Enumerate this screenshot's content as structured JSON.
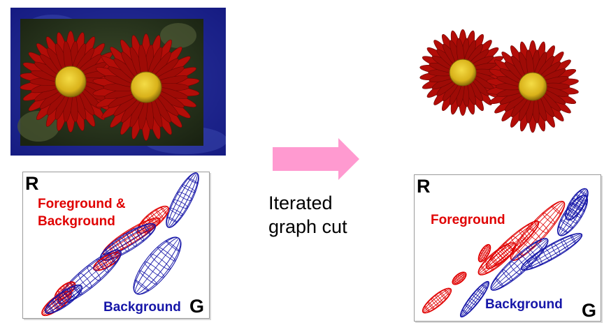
{
  "colors": {
    "foreground": "#e00000",
    "background": "#1616a8",
    "arrow": "#ff9ad0",
    "mask_border": "#1a1f8a",
    "petal": "#b30d08",
    "center": "#e8c21c"
  },
  "left_plot": {
    "axis_y": "R",
    "axis_x": "G",
    "label_mixed_line1": "Foreground &",
    "label_mixed_line2": "Background",
    "label_background": "Background"
  },
  "right_plot": {
    "axis_y": "R",
    "axis_x": "G",
    "label_foreground": "Foreground",
    "label_background": "Background"
  },
  "caption": {
    "line1": "Iterated",
    "line2": "graph cut"
  }
}
